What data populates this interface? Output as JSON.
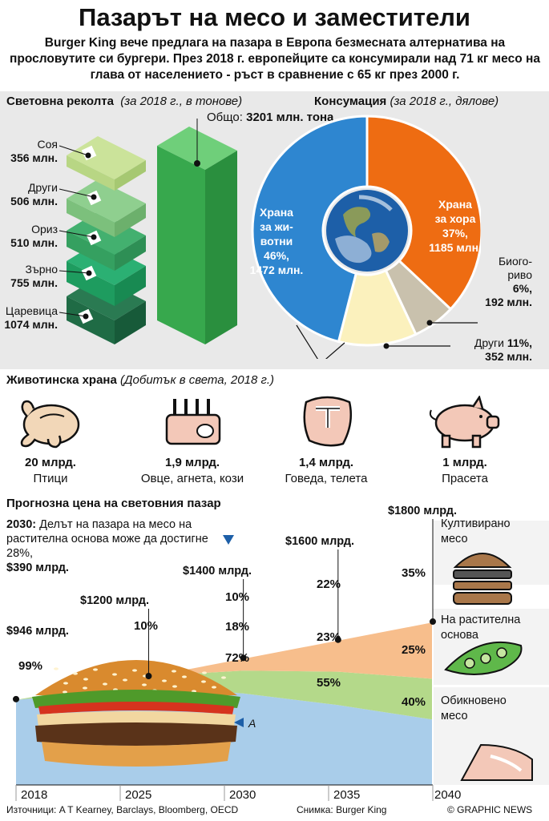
{
  "title": "Пазарът на месо и заместители",
  "intro": "Burger King вече предлага на пазара в Европа безмесната алтернатива на прословутите си бургери. През 2018 г. европейците са консумирали над 71 кг месо на глава от населението - ръст в сравнение с 65 кг през 2000 г.",
  "harvest": {
    "heading": "Световна реколта",
    "subheading": "(за 2018 г., в тонове)",
    "total_label": "Общо:",
    "total_value": "3201 млн. тона",
    "layers": [
      {
        "name": "Соя",
        "value": "356 млн."
      },
      {
        "name": "Други",
        "value": "506 млн."
      },
      {
        "name": "Ориз",
        "value": "510 млн."
      },
      {
        "name": "Зърно",
        "value": "755 млн."
      },
      {
        "name": "Царевица",
        "value": "1074 млн."
      }
    ]
  },
  "consumption": {
    "heading": "Консумация",
    "subheading": "(за 2018 г., дялове)",
    "slices": [
      {
        "l1": "Храна",
        "l2": "за жи-",
        "l3": "вотни",
        "l4": "46%,",
        "l5": "1472 млн.",
        "pct": 46,
        "color": "#2e86d0"
      },
      {
        "l1": "Храна",
        "l2": "за хора",
        "l3": "37%,",
        "l4": "1185 млн.",
        "pct": 37,
        "color": "#ee6c12"
      },
      {
        "l1": "Биого-",
        "l2": "риво",
        "l3": "6%,",
        "l4": "192 млн.",
        "pct": 6,
        "color": "#c9c1ad"
      },
      {
        "l1": "Други",
        "l2": "11%,",
        "l3": "352 млн.",
        "pct": 11,
        "color": "#fbf1bd"
      }
    ]
  },
  "livestock": {
    "heading": "Животинска храна",
    "subheading": "(Добитък в света, 2018 г.)",
    "items": [
      {
        "value": "20 млрд.",
        "label": "Птици",
        "icon": "chicken-icon"
      },
      {
        "value": "1,9 млрд.",
        "label": "Овце, агнета, кози",
        "icon": "lamb-ribs-icon"
      },
      {
        "value": "1,4 млрд.",
        "label": "Говеда, телета",
        "icon": "steak-icon"
      },
      {
        "value": "1 млрд.",
        "label": "Прасета",
        "icon": "pig-icon"
      }
    ]
  },
  "forecast": {
    "heading": "Прогнозна цена на световния пазар",
    "note_year": "2030:",
    "note_text": "Делът на пазара на месо на растителна основа може да достигне 28%,",
    "note_value": "$390 млрд.",
    "marker_a": "A",
    "legend": {
      "cultured_1": "Култивирано",
      "cultured_2": "месо",
      "plant_1": "На растителна",
      "plant_2": "основа",
      "regular_1": "Обикновено",
      "regular_2": "месо"
    }
  },
  "chart_data": {
    "type": "area",
    "title": "Прогнозна цена на световния пазар",
    "x": [
      2018,
      2025,
      2030,
      2035,
      2040
    ],
    "x_tick_labels": [
      "2018",
      "2025",
      "2030",
      "2035",
      "2040"
    ],
    "totals": [
      "$946 млрд.",
      "$1200 млрд.",
      "$1400 млрд.",
      "$1600 млрд.",
      "$1800 млрд."
    ],
    "totals_values": [
      946,
      1200,
      1400,
      1600,
      1800
    ],
    "series": [
      {
        "name": "Обикновено месо",
        "values": [
          99,
          90,
          72,
          55,
          40
        ],
        "color": "#a9cdea"
      },
      {
        "name": "На растителна основа",
        "values": [
          1,
          10,
          18,
          23,
          25
        ],
        "color": "#b4d98a"
      },
      {
        "name": "Култивирано месо",
        "values": [
          0,
          0,
          10,
          22,
          35
        ],
        "color": "#f7be8c"
      }
    ],
    "labels": {
      "regular": [
        "99%",
        "72%",
        "55%",
        "40%"
      ],
      "plant": [
        "10%",
        "18%",
        "23%",
        "25%"
      ],
      "cultured": [
        "10%",
        "22%",
        "35%"
      ]
    }
  },
  "footer": {
    "sources": "Източници: A T Kearney, Barclays, Bloomberg, OECD",
    "photo": "Снимка: Burger King",
    "brand": "© GRAPHIC NEWS"
  }
}
